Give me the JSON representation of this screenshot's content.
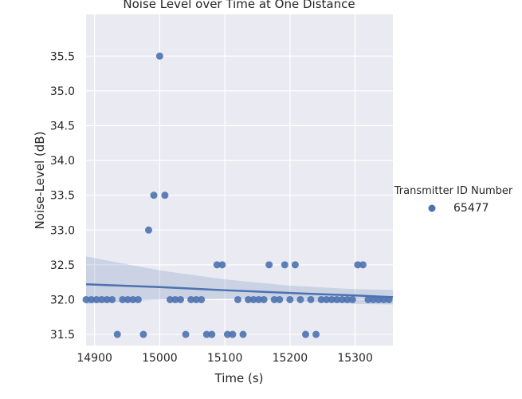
{
  "chart_data": {
    "type": "scatter",
    "title": "Noise Level over Time at One Distance",
    "xlabel": "Time (s)",
    "ylabel": "Noise-Level (dB)",
    "xlim": [
      14887,
      15358
    ],
    "ylim": [
      31.34,
      36.1
    ],
    "x_ticks": [
      14900,
      15000,
      15100,
      15200,
      15300
    ],
    "y_ticks": [
      31.5,
      32.0,
      32.5,
      33.0,
      33.5,
      34.0,
      34.5,
      35.0,
      35.5
    ],
    "y_tick_labels": [
      "31.5",
      "32.0",
      "32.5",
      "33.0",
      "33.5",
      "34.0",
      "34.5",
      "35.0",
      "35.5"
    ],
    "grid": true,
    "background": "#eaeaf2",
    "legend": {
      "title": "Transmitter ID Number",
      "position": "right"
    },
    "series": [
      {
        "name": "65477",
        "color": "#4c72b0",
        "x": [
          14887,
          14895,
          14903,
          14911,
          14919,
          14927,
          14935,
          14943,
          14951,
          14959,
          14967,
          14975,
          14983,
          14991,
          15000,
          15008,
          15016,
          15024,
          15032,
          15040,
          15048,
          15056,
          15064,
          15072,
          15080,
          15088,
          15096,
          15104,
          15112,
          15120,
          15128,
          15136,
          15144,
          15152,
          15160,
          15168,
          15176,
          15184,
          15192,
          15200,
          15208,
          15216,
          15224,
          15232,
          15240,
          15248,
          15256,
          15264,
          15272,
          15280,
          15288,
          15296,
          15304,
          15312,
          15320,
          15328,
          15336,
          15344,
          15352
        ],
        "y": [
          32.0,
          32.0,
          32.0,
          32.0,
          32.0,
          32.0,
          31.5,
          32.0,
          32.0,
          32.0,
          32.0,
          31.5,
          33.0,
          33.5,
          35.5,
          33.5,
          32.0,
          32.0,
          32.0,
          31.5,
          32.0,
          32.0,
          32.0,
          31.5,
          31.5,
          32.5,
          32.5,
          31.5,
          31.5,
          32.0,
          31.5,
          32.0,
          32.0,
          32.0,
          32.0,
          32.5,
          32.0,
          32.0,
          32.5,
          32.0,
          32.5,
          32.0,
          31.5,
          32.0,
          31.5,
          32.0,
          32.0,
          32.0,
          32.0,
          32.0,
          32.0,
          32.0,
          32.5,
          32.5,
          32.0,
          32.0,
          32.0,
          32.0,
          32.0
        ],
        "regression": {
          "x": [
            14887,
            15000,
            15100,
            15200,
            15300,
            15358
          ],
          "y": [
            32.22,
            32.18,
            32.135,
            32.095,
            32.06,
            32.035
          ],
          "ci_lower": [
            31.94,
            32.0,
            32.015,
            31.985,
            31.94,
            31.93
          ],
          "ci_upper": [
            32.62,
            32.42,
            32.29,
            32.2,
            32.15,
            32.14
          ]
        }
      }
    ]
  }
}
